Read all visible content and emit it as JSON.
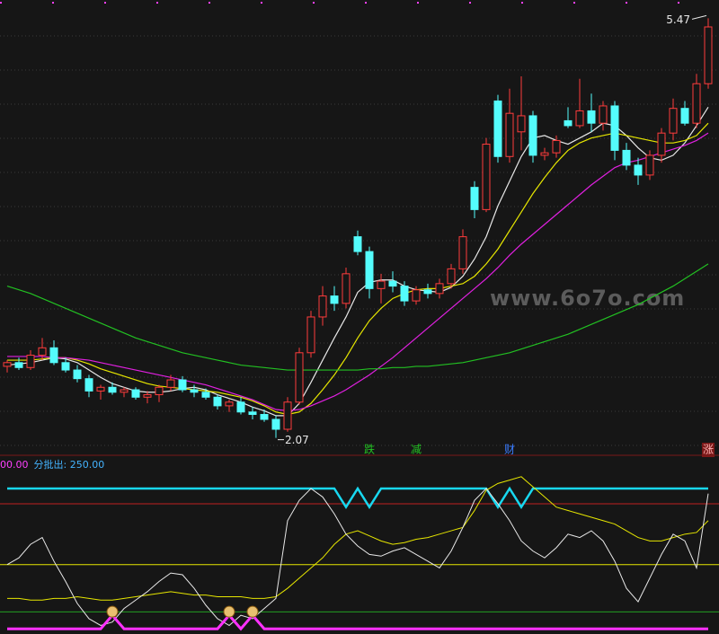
{
  "chart_data": [
    {
      "type": "candlestick",
      "watermark": "www.6o7o.com",
      "up_color": "#ff3c3c",
      "down_color": "#54fcfc",
      "ylim": [
        1.98,
        5.56
      ],
      "open": [
        2.65,
        2.68,
        2.64,
        2.74,
        2.8,
        2.68,
        2.62,
        2.55,
        2.45,
        2.48,
        2.44,
        2.46,
        2.4,
        2.42,
        2.48,
        2.54,
        2.46,
        2.44,
        2.4,
        2.33,
        2.36,
        2.28,
        2.26,
        2.22,
        2.14,
        2.36,
        2.76,
        3.05,
        3.22,
        3.16,
        3.7,
        3.58,
        3.28,
        3.34,
        3.3,
        3.18,
        3.27,
        3.24,
        3.32,
        3.44,
        4.1,
        3.92,
        4.8,
        4.35,
        4.55,
        4.68,
        4.36,
        4.38,
        4.64,
        4.6,
        4.72,
        4.62,
        4.76,
        4.4,
        4.28,
        4.2,
        4.36,
        4.54,
        4.74,
        4.62,
        4.94
      ],
      "high": [
        2.7,
        2.72,
        2.78,
        2.88,
        2.86,
        2.72,
        2.66,
        2.58,
        2.5,
        2.52,
        2.48,
        2.48,
        2.45,
        2.5,
        2.58,
        2.57,
        2.5,
        2.47,
        2.42,
        2.38,
        2.4,
        2.32,
        2.3,
        2.25,
        2.4,
        2.8,
        3.1,
        3.3,
        3.3,
        3.45,
        3.75,
        3.62,
        3.4,
        3.42,
        3.34,
        3.3,
        3.32,
        3.36,
        3.48,
        3.76,
        4.15,
        4.5,
        4.85,
        4.9,
        5.0,
        4.72,
        4.42,
        4.52,
        4.75,
        4.98,
        4.86,
        4.8,
        4.8,
        4.46,
        4.34,
        4.4,
        4.58,
        4.82,
        4.8,
        5.02,
        5.47
      ],
      "low": [
        2.6,
        2.62,
        2.62,
        2.7,
        2.66,
        2.6,
        2.52,
        2.4,
        2.38,
        2.42,
        2.4,
        2.38,
        2.35,
        2.36,
        2.45,
        2.44,
        2.4,
        2.38,
        2.3,
        2.28,
        2.26,
        2.22,
        2.2,
        2.07,
        2.12,
        2.34,
        2.72,
        2.98,
        3.1,
        3.12,
        3.55,
        3.2,
        3.16,
        3.25,
        3.14,
        3.15,
        3.2,
        3.2,
        3.28,
        3.4,
        3.85,
        3.9,
        4.3,
        4.3,
        4.4,
        4.3,
        4.32,
        4.34,
        4.58,
        4.58,
        4.55,
        4.56,
        4.32,
        4.24,
        4.12,
        4.16,
        4.3,
        4.48,
        4.6,
        4.58,
        4.9
      ],
      "close": [
        2.68,
        2.64,
        2.74,
        2.8,
        2.68,
        2.62,
        2.55,
        2.45,
        2.48,
        2.44,
        2.46,
        2.4,
        2.42,
        2.48,
        2.54,
        2.46,
        2.44,
        2.4,
        2.33,
        2.36,
        2.28,
        2.26,
        2.22,
        2.14,
        2.36,
        2.76,
        3.05,
        3.22,
        3.16,
        3.4,
        3.58,
        3.28,
        3.34,
        3.3,
        3.18,
        3.27,
        3.24,
        3.32,
        3.44,
        3.7,
        3.92,
        4.45,
        4.35,
        4.7,
        4.68,
        4.36,
        4.38,
        4.48,
        4.6,
        4.72,
        4.62,
        4.76,
        4.4,
        4.28,
        4.2,
        4.36,
        4.54,
        4.74,
        4.62,
        4.94,
        5.4
      ],
      "series": [
        {
          "color": "#e8e8e8",
          "values": [
            2.66,
            2.67,
            2.68,
            2.7,
            2.72,
            2.71,
            2.68,
            2.62,
            2.56,
            2.51,
            2.48,
            2.45,
            2.44,
            2.44,
            2.45,
            2.47,
            2.48,
            2.46,
            2.42,
            2.39,
            2.36,
            2.32,
            2.29,
            2.25,
            2.25,
            2.35,
            2.52,
            2.7,
            2.88,
            3.05,
            3.25,
            3.33,
            3.35,
            3.35,
            3.3,
            3.27,
            3.26,
            3.25,
            3.29,
            3.38,
            3.52,
            3.7,
            3.95,
            4.15,
            4.35,
            4.5,
            4.52,
            4.48,
            4.45,
            4.5,
            4.55,
            4.62,
            4.6,
            4.52,
            4.42,
            4.34,
            4.32,
            4.36,
            4.46,
            4.6,
            4.75
          ]
        },
        {
          "color": "#e6e600",
          "values": [
            2.7,
            2.7,
            2.7,
            2.71,
            2.72,
            2.72,
            2.7,
            2.67,
            2.63,
            2.6,
            2.57,
            2.54,
            2.51,
            2.49,
            2.48,
            2.47,
            2.46,
            2.45,
            2.44,
            2.42,
            2.4,
            2.37,
            2.33,
            2.28,
            2.26,
            2.28,
            2.35,
            2.46,
            2.58,
            2.72,
            2.88,
            3.02,
            3.12,
            3.2,
            3.24,
            3.27,
            3.28,
            3.28,
            3.3,
            3.32,
            3.38,
            3.48,
            3.6,
            3.75,
            3.9,
            4.05,
            4.18,
            4.3,
            4.4,
            4.46,
            4.5,
            4.52,
            4.54,
            4.52,
            4.5,
            4.48,
            4.46,
            4.46,
            4.48,
            4.52,
            4.62
          ]
        },
        {
          "color": "#e020e0",
          "values": [
            2.73,
            2.73,
            2.73,
            2.73,
            2.72,
            2.72,
            2.71,
            2.7,
            2.68,
            2.66,
            2.64,
            2.62,
            2.6,
            2.58,
            2.56,
            2.54,
            2.52,
            2.5,
            2.47,
            2.44,
            2.41,
            2.38,
            2.34,
            2.3,
            2.29,
            2.3,
            2.33,
            2.37,
            2.41,
            2.46,
            2.52,
            2.58,
            2.65,
            2.72,
            2.8,
            2.88,
            2.96,
            3.04,
            3.12,
            3.2,
            3.28,
            3.36,
            3.45,
            3.55,
            3.64,
            3.72,
            3.8,
            3.88,
            3.96,
            4.04,
            4.12,
            4.19,
            4.26,
            4.3,
            4.32,
            4.35,
            4.38,
            4.41,
            4.44,
            4.48,
            4.54
          ]
        },
        {
          "color": "#22c022",
          "values": [
            3.3,
            3.27,
            3.24,
            3.2,
            3.16,
            3.12,
            3.08,
            3.04,
            3.0,
            2.96,
            2.92,
            2.88,
            2.85,
            2.82,
            2.79,
            2.76,
            2.74,
            2.72,
            2.7,
            2.68,
            2.66,
            2.65,
            2.64,
            2.63,
            2.62,
            2.62,
            2.62,
            2.62,
            2.62,
            2.62,
            2.62,
            2.63,
            2.63,
            2.64,
            2.64,
            2.65,
            2.65,
            2.66,
            2.67,
            2.68,
            2.7,
            2.72,
            2.74,
            2.76,
            2.79,
            2.82,
            2.85,
            2.88,
            2.91,
            2.95,
            2.99,
            3.03,
            3.07,
            3.11,
            3.15,
            3.2,
            3.25,
            3.3,
            3.36,
            3.42,
            3.48
          ]
        }
      ],
      "signals": [
        null,
        null,
        null,
        null,
        null,
        null,
        null,
        null,
        null,
        null,
        null,
        null,
        null,
        null,
        null,
        null,
        null,
        null,
        null,
        null,
        null,
        null,
        null,
        null,
        null,
        null,
        null,
        null,
        null,
        null,
        null,
        {
          "text": "跌",
          "color": "#22c022"
        },
        null,
        null,
        null,
        {
          "text": "减",
          "color": "#22c022"
        },
        null,
        null,
        null,
        null,
        null,
        null,
        null,
        {
          "text": "财",
          "color": "#3a7cff"
        },
        null,
        null,
        null,
        null,
        null,
        null,
        null,
        null,
        null,
        null,
        null,
        null,
        null,
        null,
        null,
        null,
        {
          "text": "涨",
          "color": "#ffb0b0",
          "background": "#7a1818"
        }
      ]
    },
    {
      "type": "line",
      "header": [
        {
          "text": "00.00",
          "color": "#ff40ff"
        },
        {
          "text": "分批出: 250.00",
          "color": "#44b4ff"
        }
      ],
      "ylim": [
        -2,
        100
      ],
      "hlines": [
        {
          "value": 74,
          "color": "#c02020"
        },
        {
          "value": 38,
          "color": "#e6e600"
        },
        {
          "value": 10,
          "color": "#22a022"
        }
      ],
      "series": [
        {
          "color": "#18d8f0",
          "width": 2.5,
          "values": [
            83,
            83,
            83,
            83,
            83,
            83,
            83,
            83,
            83,
            83,
            83,
            83,
            83,
            83,
            83,
            83,
            83,
            83,
            83,
            83,
            83,
            83,
            83,
            83,
            83,
            83,
            83,
            83,
            83,
            72,
            83,
            72,
            83,
            83,
            83,
            83,
            83,
            83,
            83,
            83,
            83,
            83,
            72,
            83,
            72,
            83,
            83,
            83,
            83,
            83,
            83,
            83,
            83,
            83,
            83,
            83,
            83,
            83,
            83,
            83,
            83
          ]
        },
        {
          "color": "#e6e600",
          "width": 1,
          "values": [
            18,
            18,
            17,
            17,
            18,
            18,
            19,
            18,
            17,
            17,
            18,
            19,
            20,
            21,
            22,
            21,
            20,
            20,
            19,
            19,
            19,
            18,
            18,
            19,
            24,
            30,
            36,
            42,
            50,
            56,
            58,
            55,
            52,
            50,
            51,
            53,
            54,
            56,
            58,
            60,
            70,
            82,
            86,
            88,
            90,
            84,
            78,
            72,
            70,
            68,
            66,
            64,
            62,
            58,
            54,
            52,
            52,
            54,
            56,
            57,
            64
          ]
        },
        {
          "color": "#e8e8e8",
          "width": 1,
          "values": [
            38,
            42,
            50,
            54,
            40,
            28,
            15,
            6,
            2,
            4,
            12,
            17,
            22,
            28,
            33,
            32,
            24,
            14,
            6,
            2,
            8,
            6,
            12,
            18,
            64,
            76,
            83,
            78,
            68,
            56,
            49,
            44,
            43,
            46,
            48,
            44,
            40,
            36,
            46,
            60,
            76,
            83,
            74,
            64,
            52,
            46,
            42,
            48,
            56,
            54,
            58,
            52,
            40,
            24,
            16,
            30,
            44,
            56,
            52,
            36,
            80
          ]
        },
        {
          "color": "#ff30ff",
          "width": 3,
          "values": [
            0,
            0,
            0,
            0,
            0,
            0,
            0,
            0,
            0,
            8,
            0,
            0,
            0,
            0,
            0,
            0,
            0,
            0,
            0,
            8,
            0,
            8,
            0,
            0,
            0,
            0,
            0,
            0,
            0,
            0,
            0,
            0,
            0,
            0,
            0,
            0,
            0,
            0,
            0,
            0,
            0,
            0,
            0,
            0,
            0,
            0,
            0,
            0,
            0,
            0,
            0,
            0,
            0,
            0,
            0,
            0,
            0,
            0,
            0,
            0,
            0
          ]
        }
      ]
    }
  ]
}
